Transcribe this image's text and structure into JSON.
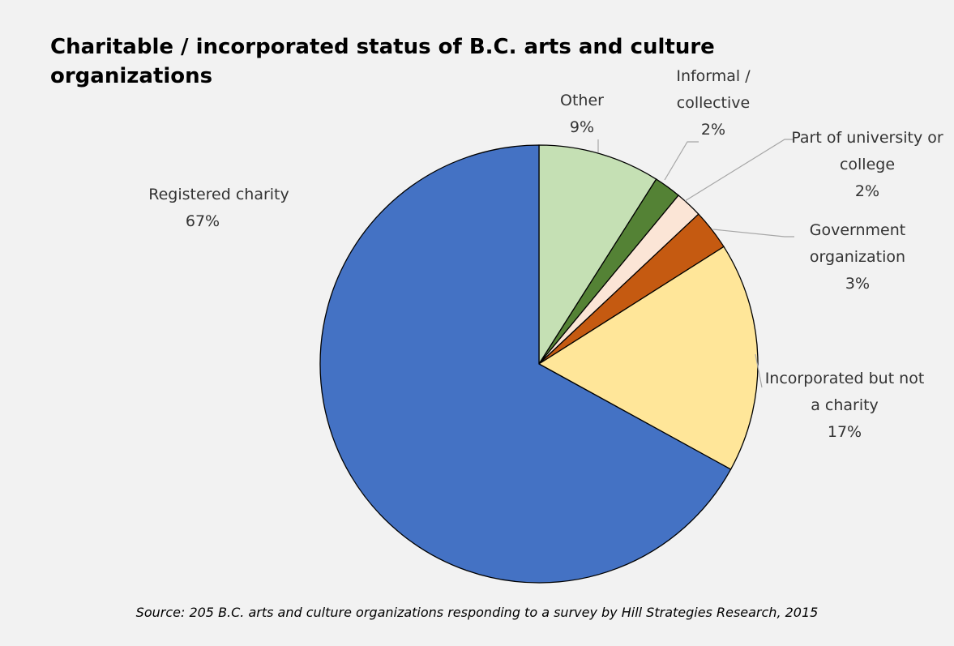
{
  "chart_data": {
    "type": "pie",
    "title": "Charitable / incorporated status of B.C. arts and culture organizations",
    "source": "Source: 205 B.C. arts and culture organizations responding to a survey by Hill Strategies Research, 2015",
    "categories": [
      "Other",
      "Informal / collective",
      "Part of university or college",
      "Government organization",
      "Incorporated but not a charity",
      "Registered charity"
    ],
    "values": [
      9,
      2,
      2,
      3,
      17,
      67
    ],
    "value_labels": [
      "9%",
      "2%",
      "2%",
      "3%",
      "17%",
      "67%"
    ],
    "colors": [
      "#c5e0b4",
      "#548235",
      "#fbe5d6",
      "#c55a11",
      "#ffe699",
      "#4472c4"
    ]
  }
}
